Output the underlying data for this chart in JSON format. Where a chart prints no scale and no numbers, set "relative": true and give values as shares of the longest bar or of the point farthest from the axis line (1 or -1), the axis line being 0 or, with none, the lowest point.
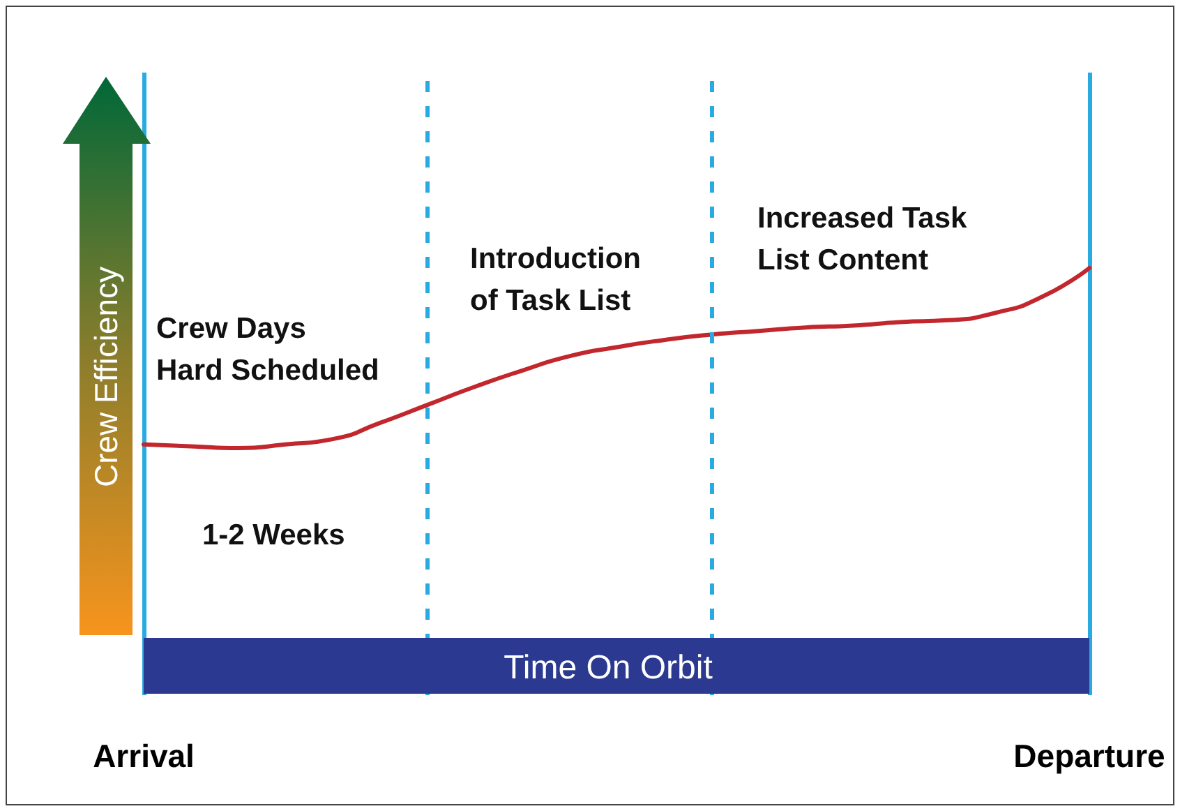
{
  "chart_data": {
    "type": "line",
    "relative": true,
    "xlabel": "Time On Orbit",
    "ylabel": "Crew Efficiency",
    "categories": [
      "Arrival",
      null,
      null,
      null,
      null,
      null,
      null,
      null,
      null,
      null,
      null,
      null,
      null,
      null,
      null,
      null,
      null,
      null,
      null,
      null,
      "Departure"
    ],
    "series": [
      {
        "color": "#c1272d",
        "values": [
          0.02,
          0.01,
          0,
          0.02,
          0.05,
          0.14,
          0.24,
          0.34,
          0.43,
          0.51,
          0.56,
          0.6,
          0.63,
          0.65,
          0.67,
          0.68,
          0.7,
          0.71,
          0.75,
          0.84,
          1
        ]
      }
    ],
    "grid": "x",
    "annotations": [
      "Crew Days Hard Scheduled",
      "Introduction of Task List",
      "Increased Task List Content",
      "1-2 Weeks"
    ],
    "marker": "none",
    "line_style": "solid"
  }
}
